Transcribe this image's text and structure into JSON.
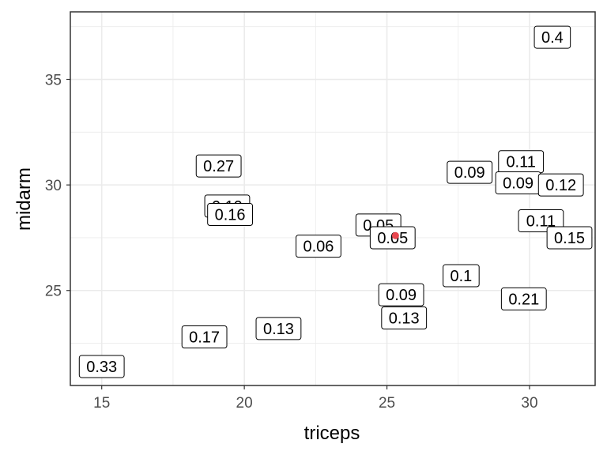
{
  "chart_data": {
    "type": "scatter",
    "xlabel": "triceps",
    "ylabel": "midarm",
    "xlim": [
      13.9,
      32.3
    ],
    "ylim": [
      20.5,
      38.2
    ],
    "x_ticks": [
      15,
      20,
      25,
      30
    ],
    "y_ticks": [
      25,
      30,
      35
    ],
    "grid": true,
    "colors": {
      "point": "#e8474f",
      "grid": "#ebebeb",
      "panel_border": "#333333",
      "label_border": "#000000"
    },
    "points": [
      {
        "x": 25.3,
        "y": 27.6
      }
    ],
    "labels": [
      {
        "x": 15.0,
        "y": 21.4,
        "text": "0.33"
      },
      {
        "x": 18.6,
        "y": 22.8,
        "text": "0.17"
      },
      {
        "x": 19.1,
        "y": 30.9,
        "text": "0.27"
      },
      {
        "x": 19.4,
        "y": 29.0,
        "text": "0.19"
      },
      {
        "x": 19.5,
        "y": 28.6,
        "text": "0.16"
      },
      {
        "x": 21.2,
        "y": 23.2,
        "text": "0.13"
      },
      {
        "x": 22.6,
        "y": 27.1,
        "text": "0.06"
      },
      {
        "x": 24.7,
        "y": 28.1,
        "text": "0.05"
      },
      {
        "x": 25.2,
        "y": 27.5,
        "text": "0.05"
      },
      {
        "x": 25.5,
        "y": 24.8,
        "text": "0.09"
      },
      {
        "x": 25.6,
        "y": 23.7,
        "text": "0.13"
      },
      {
        "x": 27.6,
        "y": 25.7,
        "text": "0.1"
      },
      {
        "x": 27.9,
        "y": 30.6,
        "text": "0.09"
      },
      {
        "x": 29.7,
        "y": 31.1,
        "text": "0.11"
      },
      {
        "x": 29.6,
        "y": 30.1,
        "text": "0.09"
      },
      {
        "x": 29.8,
        "y": 24.6,
        "text": "0.21"
      },
      {
        "x": 30.4,
        "y": 28.3,
        "text": "0.11"
      },
      {
        "x": 30.8,
        "y": 37.0,
        "text": "0.4"
      },
      {
        "x": 31.1,
        "y": 30.0,
        "text": "0.12"
      },
      {
        "x": 31.4,
        "y": 27.5,
        "text": "0.15"
      }
    ]
  }
}
